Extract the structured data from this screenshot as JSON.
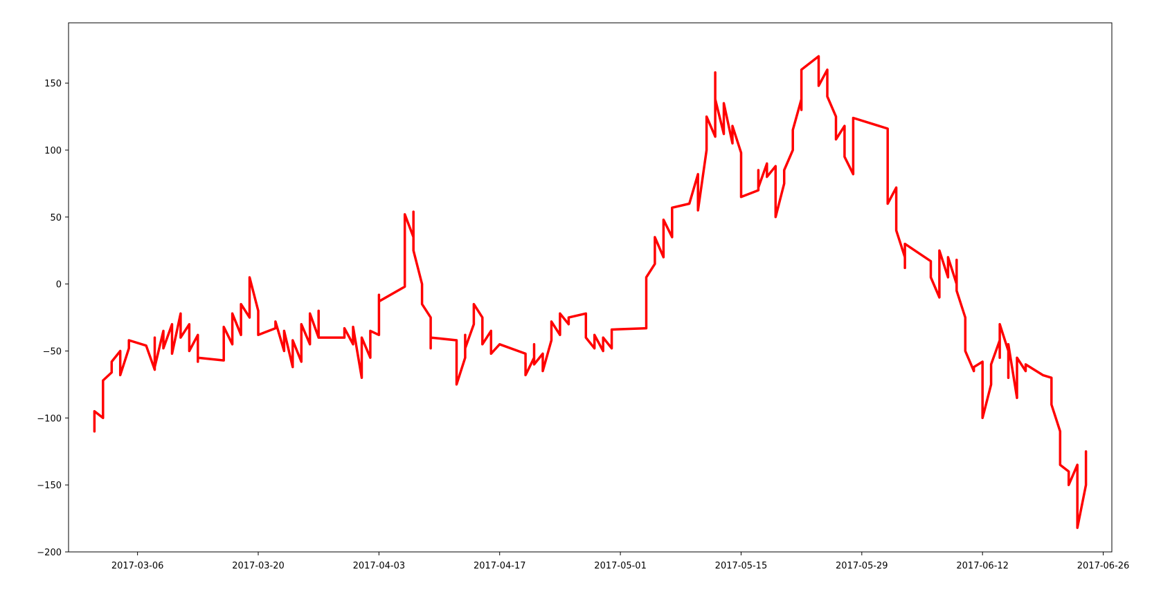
{
  "chart_data": {
    "type": "line",
    "title": "",
    "xlabel": "",
    "ylabel": "",
    "x_type": "date",
    "xlim": [
      "2017-02-26",
      "2017-06-27"
    ],
    "ylim": [
      -200,
      195
    ],
    "x_ticks": [
      "2017-03-06",
      "2017-03-20",
      "2017-04-03",
      "2017-04-17",
      "2017-05-01",
      "2017-05-15",
      "2017-05-29",
      "2017-06-12",
      "2017-06-26"
    ],
    "y_ticks": [
      -200,
      -150,
      -100,
      -50,
      0,
      50,
      100,
      150
    ],
    "grid": false,
    "legend": "none",
    "series": [
      {
        "color": "#ff0000",
        "points": [
          [
            "2017-03-01",
            -110
          ],
          [
            "2017-03-01",
            -95
          ],
          [
            "2017-03-02",
            -100
          ],
          [
            "2017-03-02",
            -80
          ],
          [
            "2017-03-02",
            -72
          ],
          [
            "2017-03-03",
            -66
          ],
          [
            "2017-03-03",
            -58
          ],
          [
            "2017-03-04",
            -50
          ],
          [
            "2017-03-04",
            -68
          ],
          [
            "2017-03-05",
            -48
          ],
          [
            "2017-03-05",
            -42
          ],
          [
            "2017-03-07",
            -46
          ],
          [
            "2017-03-08",
            -64
          ],
          [
            "2017-03-08",
            -40
          ],
          [
            "2017-03-08",
            -62
          ],
          [
            "2017-03-09",
            -35
          ],
          [
            "2017-03-09",
            -48
          ],
          [
            "2017-03-10",
            -30
          ],
          [
            "2017-03-10",
            -52
          ],
          [
            "2017-03-11",
            -22
          ],
          [
            "2017-03-11",
            -40
          ],
          [
            "2017-03-12",
            -30
          ],
          [
            "2017-03-12",
            -50
          ],
          [
            "2017-03-13",
            -38
          ],
          [
            "2017-03-13",
            -58
          ],
          [
            "2017-03-13",
            -55
          ],
          [
            "2017-03-16",
            -57
          ],
          [
            "2017-03-16",
            -32
          ],
          [
            "2017-03-17",
            -45
          ],
          [
            "2017-03-17",
            -22
          ],
          [
            "2017-03-18",
            -38
          ],
          [
            "2017-03-18",
            -15
          ],
          [
            "2017-03-19",
            -25
          ],
          [
            "2017-03-19",
            -5
          ],
          [
            "2017-03-19",
            -15
          ],
          [
            "2017-03-19",
            5
          ],
          [
            "2017-03-20",
            -20
          ],
          [
            "2017-03-20",
            -38
          ],
          [
            "2017-03-22",
            -33
          ],
          [
            "2017-03-22",
            -28
          ],
          [
            "2017-03-23",
            -50
          ],
          [
            "2017-03-23",
            -35
          ],
          [
            "2017-03-24",
            -62
          ],
          [
            "2017-03-24",
            -42
          ],
          [
            "2017-03-25",
            -58
          ],
          [
            "2017-03-25",
            -30
          ],
          [
            "2017-03-26",
            -45
          ],
          [
            "2017-03-26",
            -22
          ],
          [
            "2017-03-27",
            -40
          ],
          [
            "2017-03-27",
            -20
          ],
          [
            "2017-03-27",
            -40
          ],
          [
            "2017-03-30",
            -40
          ],
          [
            "2017-03-30",
            -33
          ],
          [
            "2017-03-31",
            -45
          ],
          [
            "2017-03-31",
            -32
          ],
          [
            "2017-04-01",
            -70
          ],
          [
            "2017-04-01",
            -40
          ],
          [
            "2017-04-02",
            -55
          ],
          [
            "2017-04-02",
            -35
          ],
          [
            "2017-04-03",
            -38
          ],
          [
            "2017-04-03",
            -22
          ],
          [
            "2017-04-03",
            -8
          ],
          [
            "2017-04-03",
            -13
          ],
          [
            "2017-04-06",
            -2
          ],
          [
            "2017-04-06",
            25
          ],
          [
            "2017-04-06",
            52
          ],
          [
            "2017-04-07",
            35
          ],
          [
            "2017-04-07",
            54
          ],
          [
            "2017-04-07",
            25
          ],
          [
            "2017-04-08",
            0
          ],
          [
            "2017-04-08",
            -15
          ],
          [
            "2017-04-09",
            -25
          ],
          [
            "2017-04-09",
            -42
          ],
          [
            "2017-04-09",
            -48
          ],
          [
            "2017-04-09",
            -40
          ],
          [
            "2017-04-12",
            -42
          ],
          [
            "2017-04-12",
            -60
          ],
          [
            "2017-04-12",
            -75
          ],
          [
            "2017-04-13",
            -55
          ],
          [
            "2017-04-13",
            -38
          ],
          [
            "2017-04-13",
            -48
          ],
          [
            "2017-04-14",
            -30
          ],
          [
            "2017-04-14",
            -15
          ],
          [
            "2017-04-15",
            -25
          ],
          [
            "2017-04-15",
            -45
          ],
          [
            "2017-04-16",
            -35
          ],
          [
            "2017-04-16",
            -52
          ],
          [
            "2017-04-17",
            -45
          ],
          [
            "2017-04-20",
            -52
          ],
          [
            "2017-04-20",
            -68
          ],
          [
            "2017-04-21",
            -55
          ],
          [
            "2017-04-21",
            -45
          ],
          [
            "2017-04-21",
            -60
          ],
          [
            "2017-04-22",
            -52
          ],
          [
            "2017-04-22",
            -65
          ],
          [
            "2017-04-23",
            -42
          ],
          [
            "2017-04-23",
            -28
          ],
          [
            "2017-04-24",
            -38
          ],
          [
            "2017-04-24",
            -22
          ],
          [
            "2017-04-25",
            -30
          ],
          [
            "2017-04-25",
            -25
          ],
          [
            "2017-04-27",
            -22
          ],
          [
            "2017-04-27",
            -40
          ],
          [
            "2017-04-28",
            -48
          ],
          [
            "2017-04-28",
            -38
          ],
          [
            "2017-04-29",
            -50
          ],
          [
            "2017-04-29",
            -40
          ],
          [
            "2017-04-30",
            -48
          ],
          [
            "2017-04-30",
            -36
          ],
          [
            "2017-04-30",
            -34
          ],
          [
            "2017-05-04",
            -33
          ],
          [
            "2017-05-04",
            -15
          ],
          [
            "2017-05-04",
            5
          ],
          [
            "2017-05-05",
            15
          ],
          [
            "2017-05-05",
            35
          ],
          [
            "2017-05-06",
            20
          ],
          [
            "2017-05-06",
            48
          ],
          [
            "2017-05-07",
            35
          ],
          [
            "2017-05-07",
            57
          ],
          [
            "2017-05-09",
            60
          ],
          [
            "2017-05-10",
            82
          ],
          [
            "2017-05-10",
            55
          ],
          [
            "2017-05-11",
            100
          ],
          [
            "2017-05-11",
            125
          ],
          [
            "2017-05-12",
            110
          ],
          [
            "2017-05-12",
            158
          ],
          [
            "2017-05-12",
            138
          ],
          [
            "2017-05-13",
            112
          ],
          [
            "2017-05-13",
            135
          ],
          [
            "2017-05-14",
            105
          ],
          [
            "2017-05-14",
            118
          ],
          [
            "2017-05-15",
            98
          ],
          [
            "2017-05-15",
            65
          ],
          [
            "2017-05-17",
            70
          ],
          [
            "2017-05-17",
            85
          ],
          [
            "2017-05-17",
            72
          ],
          [
            "2017-05-18",
            90
          ],
          [
            "2017-05-18",
            80
          ],
          [
            "2017-05-19",
            88
          ],
          [
            "2017-05-19",
            60
          ],
          [
            "2017-05-19",
            50
          ],
          [
            "2017-05-20",
            75
          ],
          [
            "2017-05-20",
            85
          ],
          [
            "2017-05-21",
            100
          ],
          [
            "2017-05-21",
            115
          ],
          [
            "2017-05-22",
            138
          ],
          [
            "2017-05-22",
            130
          ],
          [
            "2017-05-22",
            160
          ],
          [
            "2017-05-24",
            170
          ],
          [
            "2017-05-24",
            148
          ],
          [
            "2017-05-25",
            160
          ],
          [
            "2017-05-25",
            140
          ],
          [
            "2017-05-26",
            125
          ],
          [
            "2017-05-26",
            108
          ],
          [
            "2017-05-27",
            118
          ],
          [
            "2017-05-27",
            95
          ],
          [
            "2017-05-28",
            82
          ],
          [
            "2017-05-28",
            100
          ],
          [
            "2017-05-28",
            124
          ],
          [
            "2017-06-01",
            116
          ],
          [
            "2017-06-01",
            80
          ],
          [
            "2017-06-01",
            60
          ],
          [
            "2017-06-02",
            72
          ],
          [
            "2017-06-02",
            55
          ],
          [
            "2017-06-02",
            40
          ],
          [
            "2017-06-03",
            20
          ],
          [
            "2017-06-03",
            12
          ],
          [
            "2017-06-03",
            30
          ],
          [
            "2017-06-06",
            17
          ],
          [
            "2017-06-06",
            5
          ],
          [
            "2017-06-07",
            -10
          ],
          [
            "2017-06-07",
            10
          ],
          [
            "2017-06-07",
            25
          ],
          [
            "2017-06-08",
            5
          ],
          [
            "2017-06-08",
            20
          ],
          [
            "2017-06-09",
            0
          ],
          [
            "2017-06-09",
            18
          ],
          [
            "2017-06-09",
            -5
          ],
          [
            "2017-06-10",
            -25
          ],
          [
            "2017-06-10",
            -50
          ],
          [
            "2017-06-11",
            -65
          ],
          [
            "2017-06-11",
            -62
          ],
          [
            "2017-06-12",
            -58
          ],
          [
            "2017-06-12",
            -82
          ],
          [
            "2017-06-12",
            -100
          ],
          [
            "2017-06-13",
            -75
          ],
          [
            "2017-06-13",
            -60
          ],
          [
            "2017-06-14",
            -42
          ],
          [
            "2017-06-14",
            -55
          ],
          [
            "2017-06-14",
            -30
          ],
          [
            "2017-06-15",
            -50
          ],
          [
            "2017-06-15",
            -70
          ],
          [
            "2017-06-15",
            -45
          ],
          [
            "2017-06-16",
            -85
          ],
          [
            "2017-06-16",
            -65
          ],
          [
            "2017-06-16",
            -55
          ],
          [
            "2017-06-17",
            -65
          ],
          [
            "2017-06-17",
            -60
          ],
          [
            "2017-06-19",
            -68
          ],
          [
            "2017-06-20",
            -70
          ],
          [
            "2017-06-20",
            -90
          ],
          [
            "2017-06-21",
            -110
          ],
          [
            "2017-06-21",
            -135
          ],
          [
            "2017-06-22",
            -140
          ],
          [
            "2017-06-22",
            -150
          ],
          [
            "2017-06-23",
            -135
          ],
          [
            "2017-06-23",
            -165
          ],
          [
            "2017-06-23",
            -182
          ],
          [
            "2017-06-24",
            -150
          ],
          [
            "2017-06-24",
            -125
          ]
        ]
      }
    ]
  }
}
